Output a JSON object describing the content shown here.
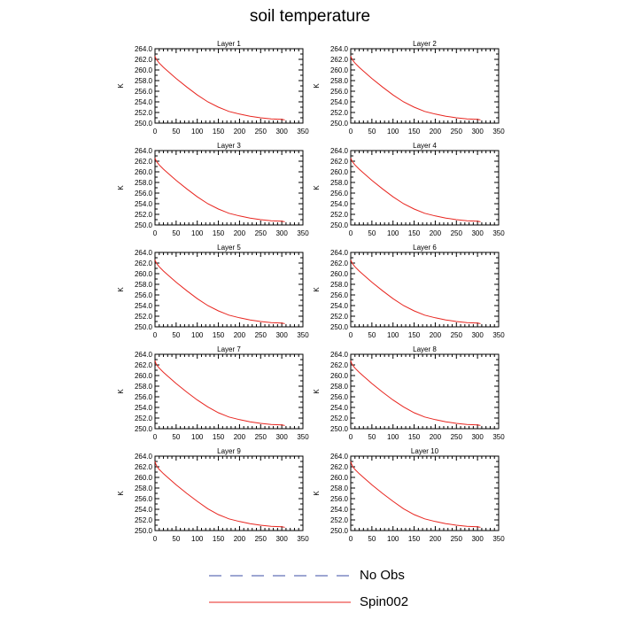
{
  "figure": {
    "title": "soil temperature"
  },
  "colors": {
    "no_obs": "#3b4ea6",
    "spin002": "#e8251f",
    "axis": "#000000"
  },
  "legend": [
    {
      "label": "No Obs",
      "style": "dashed",
      "color": "#3b4ea6"
    },
    {
      "label": "Spin002",
      "style": "solid",
      "color": "#e8251f"
    }
  ],
  "chart_data": [
    {
      "type": "line",
      "title": "Layer 1",
      "ylabel": "K",
      "xlim": [
        0,
        350
      ],
      "ylim": [
        250,
        264
      ],
      "xticks": [
        0,
        50,
        100,
        150,
        200,
        250,
        300,
        350
      ],
      "yticks": [
        250,
        252,
        254,
        256,
        258,
        260,
        262,
        264
      ],
      "ytick_labels": [
        "250.0",
        "252.0",
        "254.0",
        "256.0",
        "258.0",
        "260.0",
        "262.0",
        "264.0"
      ],
      "series": [
        {
          "name": "Spin002",
          "color": "#e8251f",
          "x": [
            0,
            2,
            5,
            10,
            20,
            30,
            50,
            75,
            100,
            125,
            150,
            175,
            200,
            225,
            250,
            275,
            300,
            307
          ],
          "y": [
            262.6,
            262.2,
            261.8,
            261.3,
            260.5,
            259.8,
            258.4,
            256.8,
            255.3,
            254.0,
            253.0,
            252.2,
            251.7,
            251.3,
            251.0,
            250.8,
            250.7,
            250.6
          ]
        }
      ]
    },
    {
      "type": "line",
      "title": "Layer 2",
      "ylabel": "K",
      "xlim": [
        0,
        350
      ],
      "ylim": [
        250,
        264
      ],
      "xticks": [
        0,
        50,
        100,
        150,
        200,
        250,
        300,
        350
      ],
      "yticks": [
        250,
        252,
        254,
        256,
        258,
        260,
        262,
        264
      ],
      "ytick_labels": [
        "250.0",
        "252.0",
        "254.0",
        "256.0",
        "258.0",
        "260.0",
        "262.0",
        "264.0"
      ],
      "series": [
        {
          "name": "Spin002",
          "color": "#e8251f",
          "x": [
            0,
            2,
            5,
            10,
            20,
            30,
            50,
            75,
            100,
            125,
            150,
            175,
            200,
            225,
            250,
            275,
            300,
            307
          ],
          "y": [
            262.6,
            262.2,
            261.8,
            261.3,
            260.5,
            259.8,
            258.4,
            256.8,
            255.3,
            254.0,
            253.0,
            252.2,
            251.7,
            251.3,
            251.0,
            250.8,
            250.7,
            250.6
          ]
        }
      ]
    },
    {
      "type": "line",
      "title": "Layer 3",
      "ylabel": "K",
      "xlim": [
        0,
        350
      ],
      "ylim": [
        250,
        264
      ],
      "xticks": [
        0,
        50,
        100,
        150,
        200,
        250,
        300,
        350
      ],
      "yticks": [
        250,
        252,
        254,
        256,
        258,
        260,
        262,
        264
      ],
      "ytick_labels": [
        "250.0",
        "252.0",
        "254.0",
        "256.0",
        "258.0",
        "260.0",
        "262.0",
        "264.0"
      ],
      "series": [
        {
          "name": "Spin002",
          "color": "#e8251f",
          "x": [
            0,
            2,
            5,
            10,
            20,
            30,
            50,
            75,
            100,
            125,
            150,
            175,
            200,
            225,
            250,
            275,
            300,
            307
          ],
          "y": [
            262.6,
            262.2,
            261.8,
            261.3,
            260.5,
            259.8,
            258.4,
            256.8,
            255.3,
            254.0,
            253.0,
            252.2,
            251.7,
            251.3,
            251.0,
            250.8,
            250.7,
            250.6
          ]
        }
      ]
    },
    {
      "type": "line",
      "title": "Layer 4",
      "ylabel": "K",
      "xlim": [
        0,
        350
      ],
      "ylim": [
        250,
        264
      ],
      "xticks": [
        0,
        50,
        100,
        150,
        200,
        250,
        300,
        350
      ],
      "yticks": [
        250,
        252,
        254,
        256,
        258,
        260,
        262,
        264
      ],
      "ytick_labels": [
        "250.0",
        "252.0",
        "254.0",
        "256.0",
        "258.0",
        "260.0",
        "262.0",
        "264.0"
      ],
      "series": [
        {
          "name": "Spin002",
          "color": "#e8251f",
          "x": [
            0,
            2,
            5,
            10,
            20,
            30,
            50,
            75,
            100,
            125,
            150,
            175,
            200,
            225,
            250,
            275,
            300,
            307
          ],
          "y": [
            262.6,
            262.2,
            261.8,
            261.3,
            260.5,
            259.8,
            258.4,
            256.8,
            255.3,
            254.0,
            253.0,
            252.2,
            251.7,
            251.3,
            251.0,
            250.8,
            250.7,
            250.6
          ]
        }
      ]
    },
    {
      "type": "line",
      "title": "Layer 5",
      "ylabel": "K",
      "xlim": [
        0,
        350
      ],
      "ylim": [
        250,
        264
      ],
      "xticks": [
        0,
        50,
        100,
        150,
        200,
        250,
        300,
        350
      ],
      "yticks": [
        250,
        252,
        254,
        256,
        258,
        260,
        262,
        264
      ],
      "ytick_labels": [
        "250.0",
        "252.0",
        "254.0",
        "256.0",
        "258.0",
        "260.0",
        "262.0",
        "264.0"
      ],
      "series": [
        {
          "name": "Spin002",
          "color": "#e8251f",
          "x": [
            0,
            2,
            5,
            10,
            20,
            30,
            50,
            75,
            100,
            125,
            150,
            175,
            200,
            225,
            250,
            275,
            300,
            307
          ],
          "y": [
            262.6,
            262.2,
            261.8,
            261.3,
            260.5,
            259.8,
            258.4,
            256.8,
            255.3,
            254.0,
            253.0,
            252.2,
            251.7,
            251.3,
            251.0,
            250.8,
            250.7,
            250.6
          ]
        }
      ]
    },
    {
      "type": "line",
      "title": "Layer 6",
      "ylabel": "K",
      "xlim": [
        0,
        350
      ],
      "ylim": [
        250,
        264
      ],
      "xticks": [
        0,
        50,
        100,
        150,
        200,
        250,
        300,
        350
      ],
      "yticks": [
        250,
        252,
        254,
        256,
        258,
        260,
        262,
        264
      ],
      "ytick_labels": [
        "250.0",
        "252.0",
        "254.0",
        "256.0",
        "258.0",
        "260.0",
        "262.0",
        "264.0"
      ],
      "series": [
        {
          "name": "Spin002",
          "color": "#e8251f",
          "x": [
            0,
            2,
            5,
            10,
            20,
            30,
            50,
            75,
            100,
            125,
            150,
            175,
            200,
            225,
            250,
            275,
            300,
            307
          ],
          "y": [
            262.6,
            262.2,
            261.8,
            261.3,
            260.5,
            259.8,
            258.4,
            256.8,
            255.3,
            254.0,
            253.0,
            252.2,
            251.7,
            251.3,
            251.0,
            250.8,
            250.7,
            250.6
          ]
        }
      ]
    },
    {
      "type": "line",
      "title": "Layer 7",
      "ylabel": "K",
      "xlim": [
        0,
        350
      ],
      "ylim": [
        250,
        264
      ],
      "xticks": [
        0,
        50,
        100,
        150,
        200,
        250,
        300,
        350
      ],
      "yticks": [
        250,
        252,
        254,
        256,
        258,
        260,
        262,
        264
      ],
      "ytick_labels": [
        "250.0",
        "252.0",
        "254.0",
        "256.0",
        "258.0",
        "260.0",
        "262.0",
        "264.0"
      ],
      "series": [
        {
          "name": "Spin002",
          "color": "#e8251f",
          "x": [
            0,
            2,
            5,
            10,
            20,
            30,
            50,
            75,
            100,
            125,
            150,
            175,
            200,
            225,
            250,
            275,
            300,
            307
          ],
          "y": [
            262.8,
            262.3,
            261.9,
            261.4,
            260.6,
            259.9,
            258.5,
            256.9,
            255.4,
            254.1,
            253.0,
            252.2,
            251.7,
            251.3,
            251.0,
            250.8,
            250.7,
            250.6
          ]
        }
      ]
    },
    {
      "type": "line",
      "title": "Layer 8",
      "ylabel": "K",
      "xlim": [
        0,
        350
      ],
      "ylim": [
        250,
        264
      ],
      "xticks": [
        0,
        50,
        100,
        150,
        200,
        250,
        300,
        350
      ],
      "yticks": [
        250,
        252,
        254,
        256,
        258,
        260,
        262,
        264
      ],
      "ytick_labels": [
        "250.0",
        "252.0",
        "254.0",
        "256.0",
        "258.0",
        "260.0",
        "262.0",
        "264.0"
      ],
      "series": [
        {
          "name": "Spin002",
          "color": "#e8251f",
          "x": [
            0,
            2,
            5,
            10,
            20,
            30,
            50,
            75,
            100,
            125,
            150,
            175,
            200,
            225,
            250,
            275,
            300,
            307
          ],
          "y": [
            262.8,
            262.3,
            261.9,
            261.4,
            260.6,
            259.9,
            258.5,
            256.9,
            255.4,
            254.1,
            253.0,
            252.2,
            251.7,
            251.3,
            251.0,
            250.8,
            250.7,
            250.6
          ]
        }
      ]
    },
    {
      "type": "line",
      "title": "Layer 9",
      "ylabel": "K",
      "xlim": [
        0,
        350
      ],
      "ylim": [
        250,
        264
      ],
      "xticks": [
        0,
        50,
        100,
        150,
        200,
        250,
        300,
        350
      ],
      "yticks": [
        250,
        252,
        254,
        256,
        258,
        260,
        262,
        264
      ],
      "ytick_labels": [
        "250.0",
        "252.0",
        "254.0",
        "256.0",
        "258.0",
        "260.0",
        "262.0",
        "264.0"
      ],
      "series": [
        {
          "name": "Spin002",
          "color": "#e8251f",
          "x": [
            0,
            2,
            5,
            10,
            20,
            30,
            50,
            75,
            100,
            125,
            150,
            175,
            200,
            225,
            250,
            275,
            300,
            307
          ],
          "y": [
            263.0,
            262.5,
            262.0,
            261.5,
            260.7,
            260.0,
            258.6,
            257.0,
            255.5,
            254.1,
            253.0,
            252.2,
            251.7,
            251.3,
            251.0,
            250.8,
            250.7,
            250.6
          ]
        }
      ]
    },
    {
      "type": "line",
      "title": "Layer 10",
      "ylabel": "K",
      "xlim": [
        0,
        350
      ],
      "ylim": [
        250,
        264
      ],
      "xticks": [
        0,
        50,
        100,
        150,
        200,
        250,
        300,
        350
      ],
      "yticks": [
        250,
        252,
        254,
        256,
        258,
        260,
        262,
        264
      ],
      "ytick_labels": [
        "250.0",
        "252.0",
        "254.0",
        "256.0",
        "258.0",
        "260.0",
        "262.0",
        "264.0"
      ],
      "series": [
        {
          "name": "Spin002",
          "color": "#e8251f",
          "x": [
            0,
            2,
            5,
            10,
            20,
            30,
            50,
            75,
            100,
            125,
            150,
            175,
            200,
            225,
            250,
            275,
            300,
            307
          ],
          "y": [
            263.0,
            262.5,
            262.0,
            261.5,
            260.7,
            260.0,
            258.6,
            257.0,
            255.5,
            254.1,
            253.0,
            252.2,
            251.7,
            251.3,
            251.0,
            250.8,
            250.7,
            250.6
          ]
        }
      ]
    }
  ]
}
